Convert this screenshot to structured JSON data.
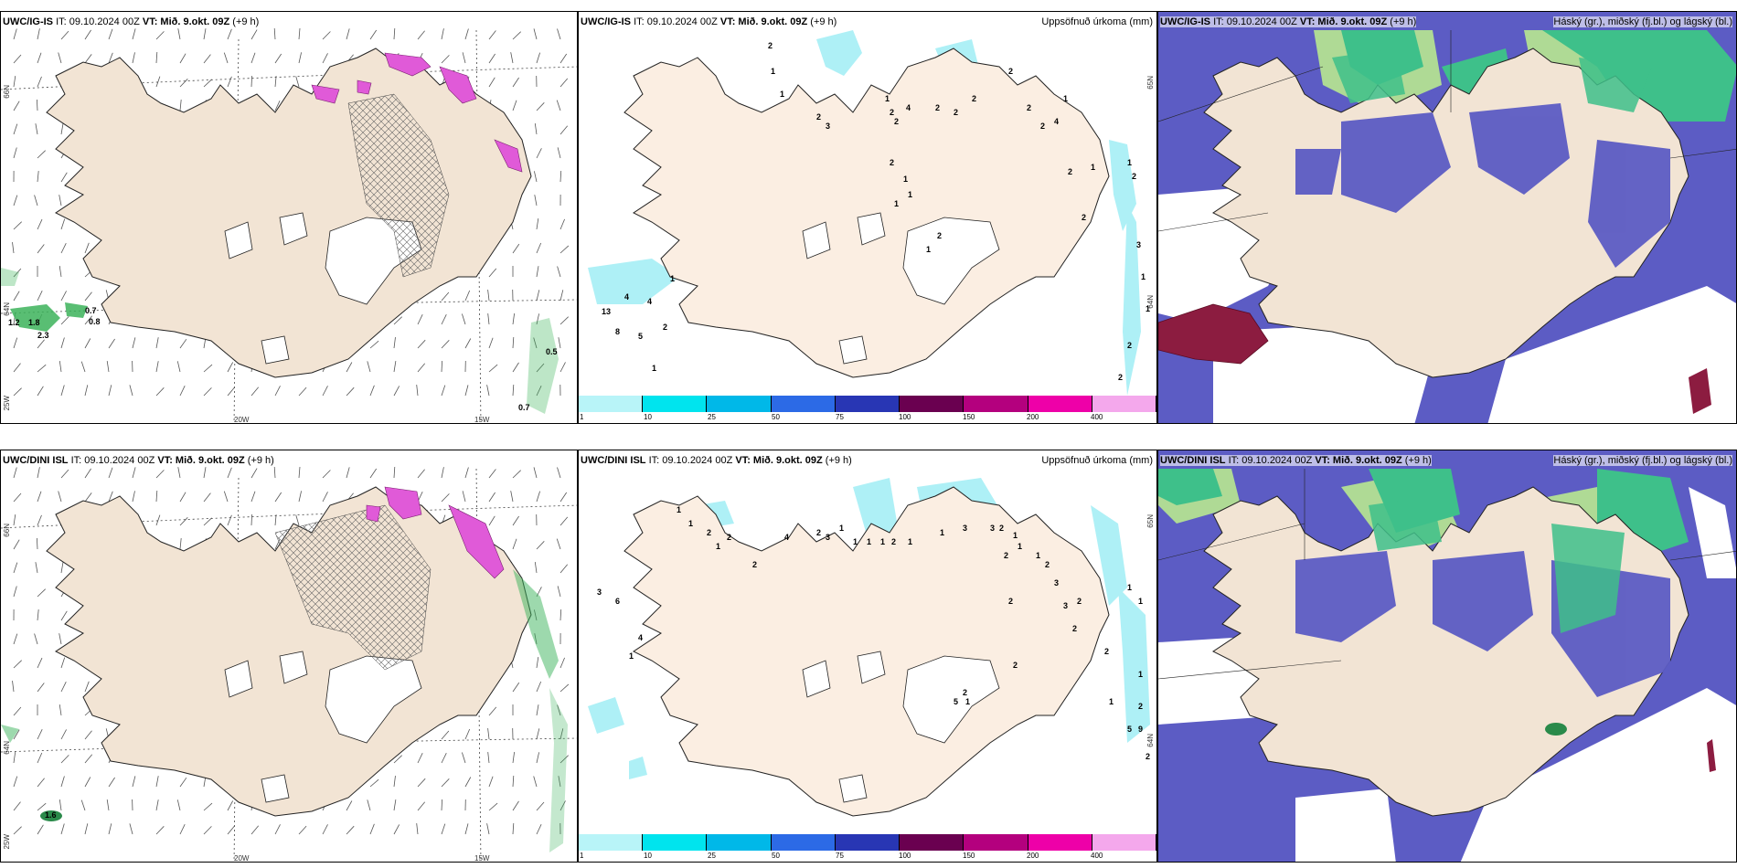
{
  "panels": [
    {
      "id": "p1",
      "model": "UWC/IG-IS",
      "run": "IT: 09.10.2024 00Z",
      "valid_label": "VT:",
      "valid": "Mið. 9.okt. 09Z",
      "lead": "(+9 h)",
      "right_title": "",
      "kind": "wind",
      "lat_labels": [
        "66N",
        "64N",
        "25W"
      ],
      "lon_labels": [
        "20W",
        "15W"
      ],
      "values": [
        "1.2",
        "1.8",
        "2.3",
        "0.7",
        "0.8",
        "0.5",
        "0.7"
      ]
    },
    {
      "id": "p2",
      "model": "UWC/IG-IS",
      "run": "IT: 09.10.2024 00Z",
      "valid_label": "VT:",
      "valid": "Mið. 9.okt. 09Z",
      "lead": "(+9 h)",
      "right_title": "Uppsöfnuð úrkoma (mm)",
      "kind": "precip",
      "lat_labels": [
        "65N",
        "64N"
      ],
      "values": [
        "2",
        "1",
        "1",
        "2",
        "3",
        "1",
        "2",
        "2",
        "4",
        "2",
        "2",
        "2",
        "2",
        "2",
        "2",
        "4",
        "1",
        "2",
        "1",
        "1",
        "2",
        "3",
        "1",
        "1",
        "2",
        "2",
        "2",
        "1",
        "1",
        "1",
        "1",
        "2",
        "13",
        "4",
        "4",
        "1",
        "8",
        "5",
        "2",
        "1",
        "2"
      ]
    },
    {
      "id": "p3",
      "model": "UWC/IG-IS",
      "run": "IT: 09.10.2024 00Z",
      "valid_label": "VT:",
      "valid": "Mið. 9.okt. 09Z",
      "lead": "(+9 h)",
      "right_title": "Háský (gr.), miðský (fj.bl.) og lágský (bl.)",
      "kind": "cloud"
    },
    {
      "id": "p4",
      "model": "UWC/DINI ISL",
      "run": "IT: 09.10.2024 00Z",
      "valid_label": "VT:",
      "valid": "Mið. 9.okt. 09Z",
      "lead": "(+9 h)",
      "right_title": "",
      "kind": "wind",
      "lat_labels": [
        "66N",
        "64N",
        "25W"
      ],
      "lon_labels": [
        "20W",
        "15W"
      ],
      "values": [
        "1.6"
      ]
    },
    {
      "id": "p5",
      "model": "UWC/DINI ISL",
      "run": "IT: 09.10.2024 00Z",
      "valid_label": "VT:",
      "valid": "Mið. 9.okt. 09Z",
      "lead": "(+9 h)",
      "right_title": "Uppsöfnuð úrkoma (mm)",
      "kind": "precip",
      "lat_labels": [
        "65N",
        "64N"
      ],
      "values": [
        "1",
        "1",
        "2",
        "2",
        "1",
        "2",
        "4",
        "2",
        "3",
        "1",
        "1",
        "1",
        "1",
        "2",
        "1",
        "1",
        "3",
        "3",
        "1",
        "1",
        "1",
        "2",
        "3",
        "3",
        "2",
        "1",
        "1",
        "1",
        "2",
        "9",
        "5",
        "2",
        "1",
        "2",
        "2",
        "2",
        "2",
        "2",
        "2",
        "2",
        "1",
        "5",
        "3",
        "6",
        "4",
        "1"
      ]
    },
    {
      "id": "p6",
      "model": "UWC/DINI ISL",
      "run": "IT: 09.10.2024 00Z",
      "valid_label": "VT:",
      "valid": "Mið. 9.okt. 09Z",
      "lead": "(+9 h)",
      "right_title": "Háský (gr.), miðský (fj.bl.) og lágský (bl.)",
      "kind": "cloud"
    }
  ],
  "precip_legend": {
    "labels": [
      "1",
      "10",
      "25",
      "50",
      "75",
      "100",
      "150",
      "200",
      "400"
    ],
    "colors": [
      "#b8f4f8",
      "#00e4ee",
      "#00b8e8",
      "#2c6ae6",
      "#2836b4",
      "#6a0050",
      "#b4007e",
      "#ee00a8",
      "#f4a8ec"
    ]
  },
  "colors": {
    "land": "#f2e4d4",
    "land_precip": "#fbeee2",
    "cloud_low": "#5c5cc4",
    "cloud_mid": "#3a44b0",
    "cloud_high": "#3ec08a",
    "cloud_high_light": "#b8e890",
    "cloud_dark_red": "#8c1c40",
    "precip_light": "#aef0f6"
  }
}
